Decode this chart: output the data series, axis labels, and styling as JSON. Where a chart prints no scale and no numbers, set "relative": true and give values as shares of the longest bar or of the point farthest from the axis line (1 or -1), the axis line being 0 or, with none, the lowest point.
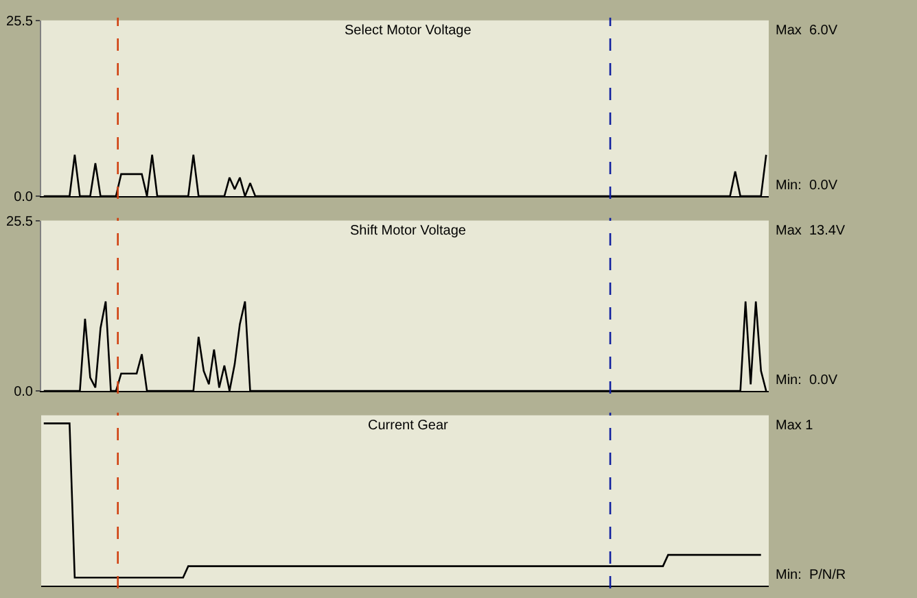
{
  "chart_data": [
    {
      "type": "line",
      "title": "Select Motor Voltage",
      "categories": [
        null,
        null,
        null,
        null,
        null,
        null,
        null,
        null,
        null,
        null,
        null,
        null,
        null,
        null,
        null,
        null,
        null,
        null,
        null,
        null,
        null,
        null,
        null,
        null,
        null,
        null,
        null,
        null,
        null,
        null,
        null,
        null,
        null,
        null,
        null,
        null,
        null,
        null,
        null,
        null,
        null,
        null,
        null,
        null,
        null,
        null,
        null,
        null,
        null,
        null,
        null,
        null,
        null,
        null,
        null,
        null,
        null,
        null,
        null,
        null,
        null,
        null,
        null,
        null,
        null,
        null,
        null,
        null,
        null,
        null,
        null,
        null,
        null,
        null,
        null,
        null,
        null,
        null,
        null,
        null,
        null,
        null,
        null,
        null,
        null,
        null,
        null,
        null,
        null,
        null,
        null,
        null,
        null,
        null,
        null,
        null,
        null,
        null,
        null,
        null,
        null,
        null,
        null,
        null,
        null,
        null,
        null,
        null,
        null,
        null,
        null,
        null,
        null,
        null,
        null,
        null,
        null,
        null,
        null,
        null,
        null,
        null,
        null,
        null,
        null,
        null,
        null,
        null,
        null,
        null,
        null,
        null,
        null,
        null,
        null,
        null,
        null,
        null,
        null,
        null,
        null
      ],
      "series": [
        {
          "color": "#000000",
          "values": [
            0,
            0,
            0,
            0,
            0,
            0,
            6.0,
            0,
            0,
            0,
            4.8,
            0,
            0,
            0,
            0,
            3.2,
            3.2,
            3.2,
            3.2,
            3.2,
            0,
            6.0,
            0,
            0,
            0,
            0,
            0,
            0,
            0,
            6.0,
            0,
            0,
            0,
            0,
            0,
            0,
            2.7,
            1.0,
            2.7,
            0,
            1.9,
            0,
            0,
            0,
            0,
            0,
            0,
            0,
            0,
            0,
            0,
            0,
            0,
            0,
            0,
            0,
            0,
            0,
            0,
            0,
            0,
            0,
            0,
            0,
            0,
            0,
            0,
            0,
            0,
            0,
            0,
            0,
            0,
            0,
            0,
            0,
            0,
            0,
            0,
            0,
            0,
            0,
            0,
            0,
            0,
            0,
            0,
            0,
            0,
            0,
            0,
            0,
            0,
            0,
            0,
            0,
            0,
            0,
            0,
            0,
            0,
            0,
            0,
            0,
            0,
            0,
            0,
            0,
            0,
            0,
            0,
            0,
            0,
            0,
            0,
            0,
            0,
            0,
            0,
            0,
            0,
            0,
            0,
            0,
            0,
            0,
            0,
            0,
            0,
            0,
            0,
            0,
            0,
            0,
            3.6,
            0,
            0,
            0,
            0,
            0,
            6.0
          ]
        }
      ],
      "ylim": [
        0,
        25.5
      ],
      "yticks": [
        {
          "value": 0,
          "label": "0.0"
        },
        25.5
      ],
      "tick_labels": "y",
      "annotations": [
        "Max  6.0V",
        "Min:  0.0V"
      ]
    },
    {
      "type": "line",
      "title": "Shift Motor Voltage",
      "categories": [
        null,
        null,
        null,
        null,
        null,
        null,
        null,
        null,
        null,
        null,
        null,
        null,
        null,
        null,
        null,
        null,
        null,
        null,
        null,
        null,
        null,
        null,
        null,
        null,
        null,
        null,
        null,
        null,
        null,
        null,
        null,
        null,
        null,
        null,
        null,
        null,
        null,
        null,
        null,
        null,
        null,
        null,
        null,
        null,
        null,
        null,
        null,
        null,
        null,
        null,
        null,
        null,
        null,
        null,
        null,
        null,
        null,
        null,
        null,
        null,
        null,
        null,
        null,
        null,
        null,
        null,
        null,
        null,
        null,
        null,
        null,
        null,
        null,
        null,
        null,
        null,
        null,
        null,
        null,
        null,
        null,
        null,
        null,
        null,
        null,
        null,
        null,
        null,
        null,
        null,
        null,
        null,
        null,
        null,
        null,
        null,
        null,
        null,
        null,
        null,
        null,
        null,
        null,
        null,
        null,
        null,
        null,
        null,
        null,
        null,
        null,
        null,
        null,
        null,
        null,
        null,
        null,
        null,
        null,
        null,
        null,
        null,
        null,
        null,
        null,
        null,
        null,
        null,
        null,
        null,
        null,
        null,
        null,
        null,
        null,
        null,
        null,
        null,
        null,
        null,
        null
      ],
      "series": [
        {
          "color": "#000000",
          "values": [
            0,
            0,
            0,
            0,
            0,
            0,
            0,
            0,
            10.8,
            2.0,
            0.5,
            9.4,
            13.4,
            0,
            0,
            2.6,
            2.6,
            2.6,
            2.6,
            5.5,
            0,
            0,
            0,
            0,
            0,
            0,
            0,
            0,
            0,
            0,
            8.1,
            3.0,
            1.0,
            6.2,
            0.5,
            3.8,
            0,
            4.0,
            10.0,
            13.4,
            0,
            0,
            0,
            0,
            0,
            0,
            0,
            0,
            0,
            0,
            0,
            0,
            0,
            0,
            0,
            0,
            0,
            0,
            0,
            0,
            0,
            0,
            0,
            0,
            0,
            0,
            0,
            0,
            0,
            0,
            0,
            0,
            0,
            0,
            0,
            0,
            0,
            0,
            0,
            0,
            0,
            0,
            0,
            0,
            0,
            0,
            0,
            0,
            0,
            0,
            0,
            0,
            0,
            0,
            0,
            0,
            0,
            0,
            0,
            0,
            0,
            0,
            0,
            0,
            0,
            0,
            0,
            0,
            0,
            0,
            0,
            0,
            0,
            0,
            0,
            0,
            0,
            0,
            0,
            0,
            0,
            0,
            0,
            0,
            0,
            0,
            0,
            0,
            0,
            0,
            0,
            0,
            0,
            0,
            0,
            0,
            13.4,
            1.0,
            13.4,
            3.0,
            0
          ]
        }
      ],
      "ylim": [
        0,
        25.5
      ],
      "yticks": [
        {
          "value": 0,
          "label": "0.0"
        },
        25.5
      ],
      "tick_labels": "y",
      "annotations": [
        "Max  13.4V",
        "Min:  0.0V"
      ]
    },
    {
      "type": "line",
      "title": "Current Gear",
      "relative": true,
      "categories": [
        null,
        null,
        null,
        null,
        null,
        null,
        null,
        null,
        null,
        null,
        null,
        null,
        null,
        null,
        null,
        null,
        null,
        null,
        null,
        null,
        null,
        null,
        null,
        null,
        null,
        null,
        null,
        null,
        null,
        null,
        null,
        null,
        null,
        null,
        null,
        null,
        null,
        null,
        null,
        null,
        null,
        null,
        null,
        null,
        null,
        null,
        null,
        null,
        null,
        null,
        null,
        null,
        null,
        null,
        null,
        null,
        null,
        null,
        null,
        null,
        null,
        null,
        null,
        null,
        null,
        null,
        null,
        null,
        null,
        null,
        null,
        null,
        null,
        null,
        null,
        null,
        null,
        null,
        null,
        null,
        null,
        null,
        null,
        null,
        null,
        null,
        null,
        null,
        null,
        null,
        null,
        null,
        null,
        null,
        null,
        null,
        null,
        null,
        null,
        null,
        null,
        null,
        null,
        null,
        null,
        null,
        null,
        null,
        null,
        null,
        null,
        null,
        null,
        null,
        null,
        null,
        null,
        null,
        null,
        null,
        null,
        null,
        null,
        null,
        null,
        null,
        null,
        null,
        null,
        null,
        null,
        null,
        null,
        null,
        null,
        null,
        null,
        null,
        null,
        null,
        null
      ],
      "series": [
        {
          "color": "#000000",
          "values": [
            1,
            1,
            1,
            1,
            1,
            1,
            0.05,
            0.05,
            0.05,
            0.05,
            0.05,
            0.05,
            0.05,
            0.05,
            0.05,
            0.05,
            0.05,
            0.05,
            0.05,
            0.05,
            0.05,
            0.05,
            0.05,
            0.05,
            0.05,
            0.05,
            0.05,
            0.05,
            0.12,
            0.12,
            0.12,
            0.12,
            0.12,
            0.12,
            0.12,
            0.12,
            0.12,
            0.12,
            0.12,
            0.12,
            0.12,
            0.12,
            0.12,
            0.12,
            0.12,
            0.12,
            0.12,
            0.12,
            0.12,
            0.12,
            0.12,
            0.12,
            0.12,
            0.12,
            0.12,
            0.12,
            0.12,
            0.12,
            0.12,
            0.12,
            0.12,
            0.12,
            0.12,
            0.12,
            0.12,
            0.12,
            0.12,
            0.12,
            0.12,
            0.12,
            0.12,
            0.12,
            0.12,
            0.12,
            0.12,
            0.12,
            0.12,
            0.12,
            0.12,
            0.12,
            0.12,
            0.12,
            0.12,
            0.12,
            0.12,
            0.12,
            0.12,
            0.12,
            0.12,
            0.12,
            0.12,
            0.12,
            0.12,
            0.12,
            0.12,
            0.12,
            0.12,
            0.12,
            0.12,
            0.12,
            0.12,
            0.12,
            0.12,
            0.12,
            0.12,
            0.12,
            0.12,
            0.12,
            0.12,
            0.12,
            0.12,
            0.12,
            0.12,
            0.12,
            0.12,
            0.12,
            0.12,
            0.12,
            0.12,
            0.12,
            0.12,
            0.19,
            0.19,
            0.19,
            0.19,
            0.19,
            0.19,
            0.19,
            0.19,
            0.19,
            0.19,
            0.19,
            0.19,
            0.19,
            0.19,
            0.19,
            0.19,
            0.19,
            0.19,
            0.19,
            null
          ]
        }
      ],
      "annotations": [
        "Max 1",
        "Min:  P/N/R"
      ]
    }
  ]
}
